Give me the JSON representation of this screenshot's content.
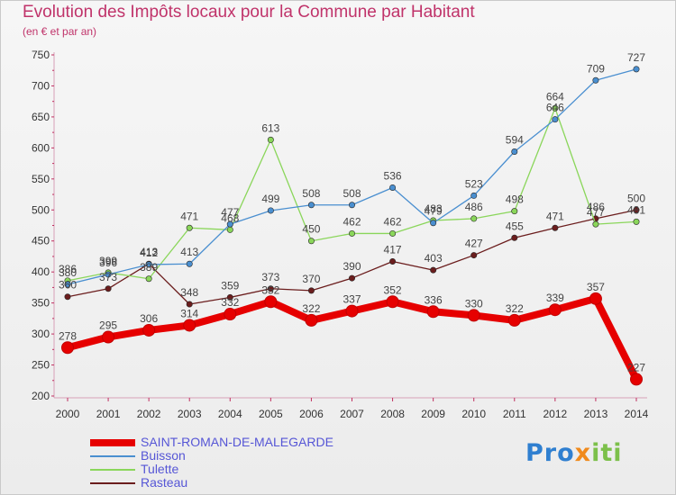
{
  "header": {
    "title": "Evolution des Impôts locaux pour la Commune par Habitant",
    "subtitle": "(en € et par an)"
  },
  "logo": {
    "text": "Proxiti"
  },
  "chart_data": {
    "type": "line",
    "title": "Evolution des Impôts locaux pour la Commune par Habitant",
    "subtitle": "(en € et par an)",
    "xlabel": "",
    "ylabel": "",
    "ylim": [
      200,
      750
    ],
    "yticks": [
      200,
      250,
      300,
      350,
      400,
      450,
      500,
      550,
      600,
      650,
      700,
      750
    ],
    "grid": false,
    "legend": "bottom-left",
    "x": [
      "2000",
      "2001",
      "2002",
      "2003",
      "2004",
      "2005",
      "2006",
      "2007",
      "2008",
      "2009",
      "2010",
      "2011",
      "2012",
      "2013",
      "2014"
    ],
    "series": [
      {
        "name": "SAINT-ROMAN-DE-MALEGARDE",
        "color": "#e60000",
        "values": [
          278,
          295,
          306,
          314,
          332,
          352,
          322,
          337,
          352,
          336,
          330,
          322,
          339,
          357,
          227
        ]
      },
      {
        "name": "Buisson",
        "color": "#4a8fd0",
        "values": [
          380,
          396,
          412,
          413,
          477,
          499,
          508,
          508,
          536,
          479,
          523,
          594,
          646,
          709,
          727
        ]
      },
      {
        "name": "Tulette",
        "color": "#8ad65a",
        "values": [
          386,
          399,
          389,
          471,
          468,
          613,
          450,
          462,
          462,
          483,
          486,
          498,
          664,
          477,
          481
        ]
      },
      {
        "name": "Rasteau",
        "color": "#6b1d1d",
        "values": [
          360,
          373,
          413,
          348,
          359,
          373,
          370,
          390,
          417,
          403,
          427,
          455,
          471,
          486,
          500
        ]
      }
    ]
  }
}
